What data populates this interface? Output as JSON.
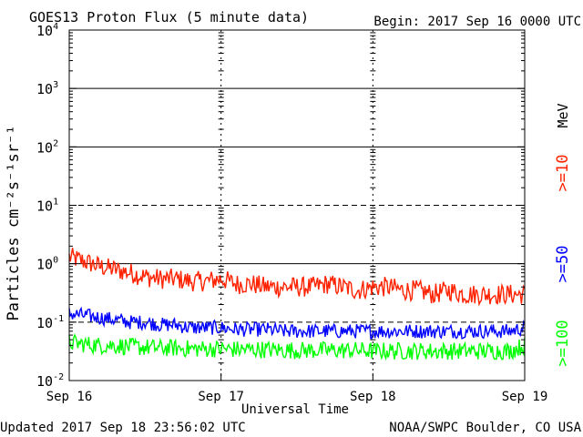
{
  "header": {
    "title": "GOES13 Proton Flux (5 minute data)",
    "begin": "Begin: 2017 Sep 16 0000 UTC"
  },
  "footer": {
    "updated": "Updated 2017 Sep 18 23:56:02 UTC",
    "source": "NOAA/SWPC Boulder, CO USA"
  },
  "colors": {
    "ge10": "#ff2200",
    "ge50": "#0000ff",
    "ge100": "#00ff00",
    "grid": "#000000",
    "background": "#ffffff"
  },
  "chart_data": {
    "type": "line",
    "title": "GOES13 Proton Flux (5 minute data)",
    "xlabel": "Universal Time",
    "ylabel": "Particles cm⁻²s⁻¹sr⁻¹",
    "y_scale": "log",
    "ylim": [
      0.01,
      10000
    ],
    "y_tick_base": "10",
    "y_tick_exponents": [
      "-2",
      "-1",
      "0",
      "1",
      "2",
      "3",
      "4"
    ],
    "x_tick_labels": [
      "Sep 16",
      "Sep 17",
      "Sep 18",
      "Sep 19"
    ],
    "xlim_days": [
      0,
      3
    ],
    "grid": {
      "solid_horizontal_at": [
        1,
        100,
        1000
      ],
      "dashed_horizontal_at": [
        0.1,
        10
      ],
      "dashed_vertical_at_days": [
        1,
        2
      ]
    },
    "legend": {
      "placement": "right",
      "unit": "MeV",
      "entries": [
        {
          "label": ">=10",
          "color": "#ff2200"
        },
        {
          "label": ">=50",
          "color": "#0000ff"
        },
        {
          "label": ">=100",
          "color": "#00ff00"
        }
      ]
    },
    "series": [
      {
        "name": ">=10",
        "color": "#ff2200",
        "x_days": [
          0,
          0.1,
          0.2,
          0.3,
          0.4,
          0.5,
          0.6,
          0.7,
          0.8,
          0.9,
          1.0,
          1.1,
          1.2,
          1.3,
          1.4,
          1.5,
          1.6,
          1.7,
          1.8,
          1.9,
          2.0,
          2.1,
          2.2,
          2.3,
          2.4,
          2.5,
          2.6,
          2.7,
          2.8,
          2.9,
          3.0
        ],
        "values": [
          1.3,
          1.1,
          0.9,
          0.8,
          0.7,
          0.6,
          0.55,
          0.55,
          0.5,
          0.5,
          0.55,
          0.45,
          0.45,
          0.4,
          0.4,
          0.4,
          0.4,
          0.45,
          0.4,
          0.35,
          0.4,
          0.4,
          0.35,
          0.35,
          0.3,
          0.35,
          0.3,
          0.3,
          0.3,
          0.3,
          0.3
        ]
      },
      {
        "name": ">=50",
        "color": "#0000ff",
        "x_days": [
          0,
          0.1,
          0.2,
          0.3,
          0.4,
          0.5,
          0.6,
          0.7,
          0.8,
          0.9,
          1.0,
          1.1,
          1.2,
          1.3,
          1.4,
          1.5,
          1.6,
          1.7,
          1.8,
          1.9,
          2.0,
          2.1,
          2.2,
          2.3,
          2.4,
          2.5,
          2.6,
          2.7,
          2.8,
          2.9,
          3.0
        ],
        "values": [
          0.14,
          0.13,
          0.12,
          0.11,
          0.1,
          0.1,
          0.09,
          0.09,
          0.08,
          0.08,
          0.08,
          0.075,
          0.075,
          0.075,
          0.07,
          0.07,
          0.07,
          0.07,
          0.07,
          0.07,
          0.07,
          0.07,
          0.07,
          0.07,
          0.07,
          0.07,
          0.07,
          0.07,
          0.07,
          0.07,
          0.08
        ]
      },
      {
        "name": ">=100",
        "color": "#00ff00",
        "x_days": [
          0,
          0.1,
          0.2,
          0.3,
          0.4,
          0.5,
          0.6,
          0.7,
          0.8,
          0.9,
          1.0,
          1.1,
          1.2,
          1.3,
          1.4,
          1.5,
          1.6,
          1.7,
          1.8,
          1.9,
          2.0,
          2.1,
          2.2,
          2.3,
          2.4,
          2.5,
          2.6,
          2.7,
          2.8,
          2.9,
          3.0
        ],
        "values": [
          0.045,
          0.042,
          0.04,
          0.04,
          0.038,
          0.037,
          0.036,
          0.036,
          0.035,
          0.035,
          0.035,
          0.034,
          0.034,
          0.034,
          0.033,
          0.033,
          0.033,
          0.033,
          0.033,
          0.033,
          0.032,
          0.032,
          0.032,
          0.032,
          0.032,
          0.032,
          0.032,
          0.032,
          0.032,
          0.032,
          0.04
        ]
      }
    ]
  }
}
